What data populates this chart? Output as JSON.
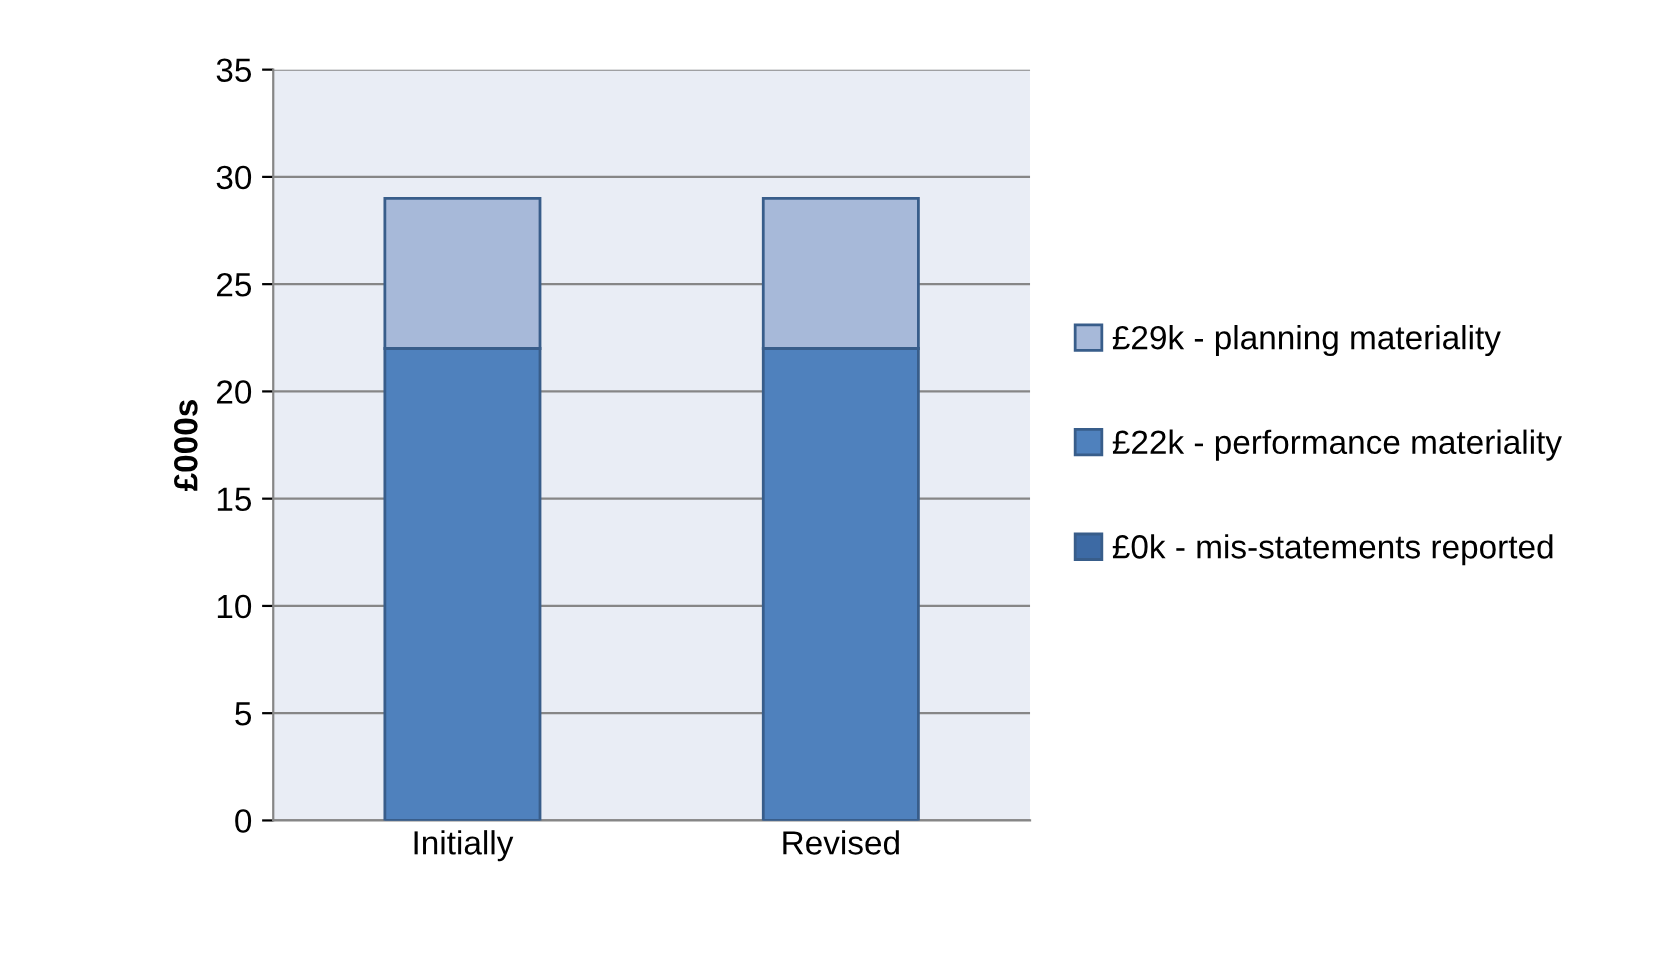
{
  "chart_data": {
    "type": "bar",
    "ylabel": "£000s",
    "stacked": true,
    "categories": [
      "Initially",
      "Revised"
    ],
    "series": [
      {
        "name": "£0k - mis-statements reported",
        "color": "#3d6aa4",
        "values": [
          0,
          0
        ]
      },
      {
        "name": "£22k - performance materiality",
        "color": "#4f81bd",
        "values": [
          22,
          22
        ]
      },
      {
        "name": "£29k - planning materiality",
        "color": "#a7b9d9",
        "values": [
          7,
          7
        ]
      }
    ],
    "ylim": [
      0,
      35
    ],
    "yticks": [
      0,
      5,
      10,
      15,
      20,
      25,
      30,
      35
    ],
    "grid": "y",
    "legend": "right"
  }
}
